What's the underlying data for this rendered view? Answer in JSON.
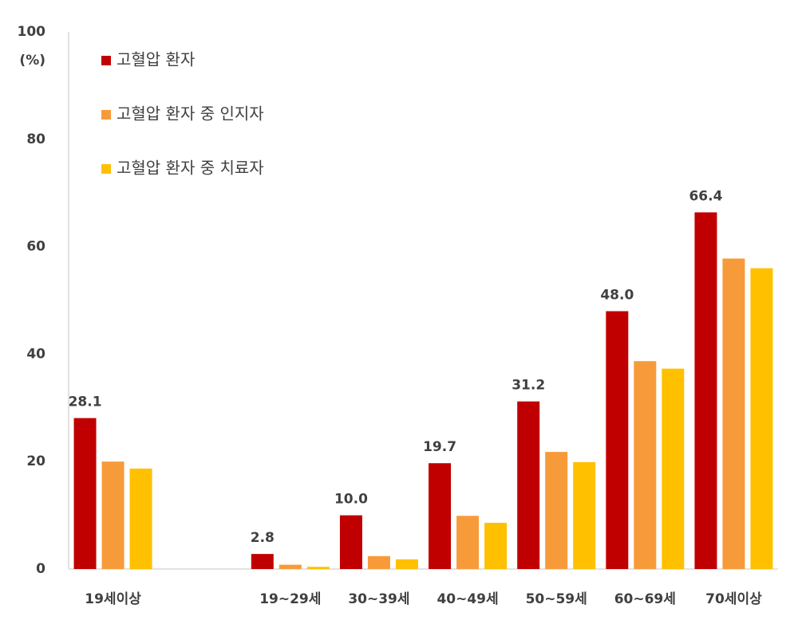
{
  "chart_data": {
    "type": "bar",
    "y_label": "(%)",
    "categories": [
      "19세이상",
      null,
      "19~29세",
      "30~39세",
      "40~49세",
      "50~59세",
      "60~69세",
      "70세이상"
    ],
    "series": [
      {
        "name": "고혈압 환자",
        "color": "#c00000",
        "values": [
          28.1,
          null,
          2.8,
          10.0,
          19.7,
          31.2,
          48.0,
          66.4
        ],
        "value_labels": [
          "28.1",
          null,
          "2.8",
          "10.0",
          "19.7",
          "31.2",
          "48.0",
          "66.4"
        ]
      },
      {
        "name": "고혈압 환자 중 인지자",
        "color": "#f79b3a",
        "values": [
          20.0,
          null,
          0.8,
          2.4,
          9.9,
          21.8,
          38.7,
          57.8
        ]
      },
      {
        "name": "고혈압 환자 중 치료자",
        "color": "#ffc000",
        "values": [
          18.7,
          null,
          0.4,
          1.8,
          8.6,
          19.9,
          37.3,
          56.0
        ]
      }
    ],
    "ylim": [
      0,
      100
    ],
    "yticks": [
      0,
      20,
      40,
      60,
      80,
      100
    ],
    "grid": false,
    "legend": "upper left"
  }
}
